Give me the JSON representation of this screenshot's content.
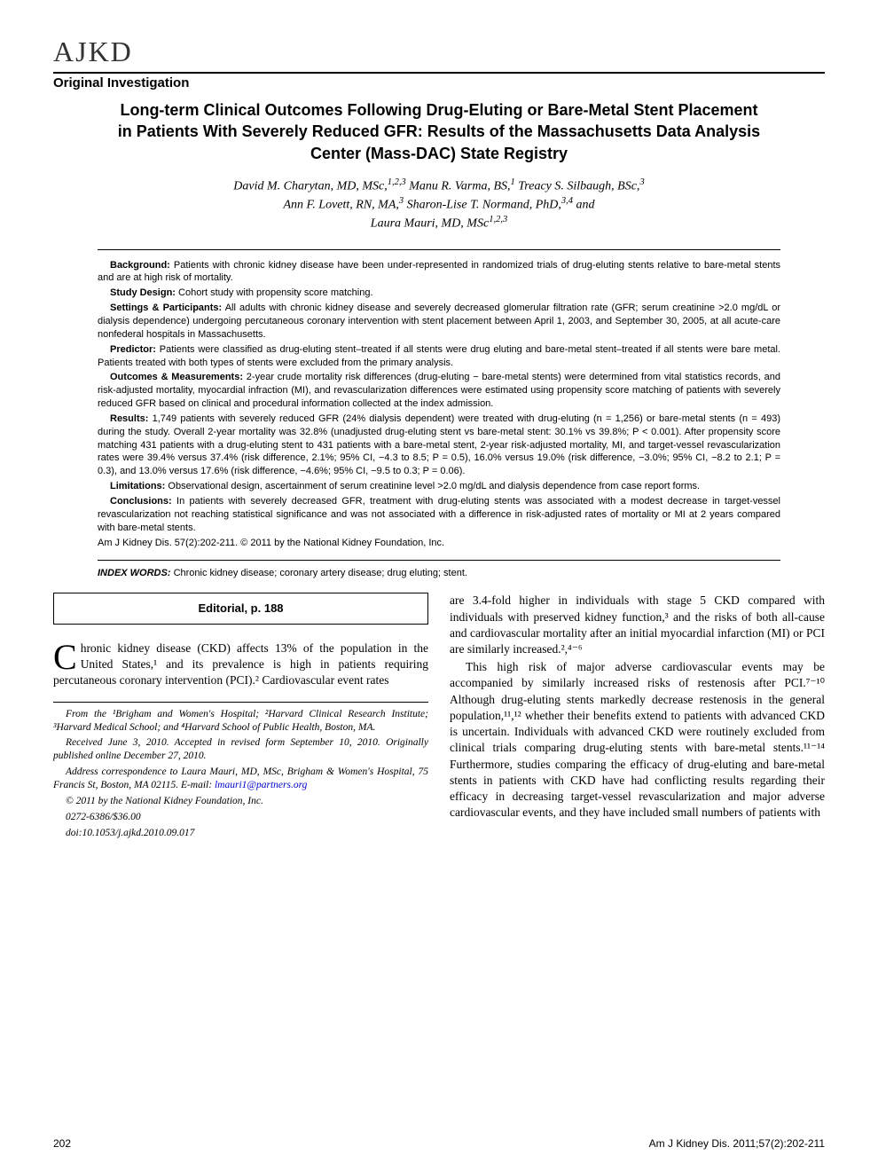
{
  "journal": {
    "logo": "AJKD",
    "section_type": "Original Investigation"
  },
  "article": {
    "title": "Long-term Clinical Outcomes Following Drug-Eluting or Bare-Metal Stent Placement in Patients With Severely Reduced GFR: Results of the Massachusetts Data Analysis Center (Mass-DAC) State Registry",
    "authors_html": "David M. Charytan, MD, MSc,<sup>1,2,3</sup> Manu R. Varma, BS,<sup>1</sup> Treacy S. Silbaugh, BSc,<sup>3</sup> Ann F. Lovett, RN, MA,<sup>3</sup> Sharon-Lise T. Normand, PhD,<sup>3,4</sup> and Laura Mauri, MD, MSc<sup>1,2,3</sup>"
  },
  "abstract": {
    "background": {
      "label": "Background:",
      "text": "Patients with chronic kidney disease have been under-represented in randomized trials of drug-eluting stents relative to bare-metal stents and are at high risk of mortality."
    },
    "study_design": {
      "label": "Study Design:",
      "text": "Cohort study with propensity score matching."
    },
    "setting": {
      "label": "Settings & Participants:",
      "text": "All adults with chronic kidney disease and severely decreased glomerular filtration rate (GFR; serum creatinine >2.0 mg/dL or dialysis dependence) undergoing percutaneous coronary intervention with stent placement between April 1, 2003, and September 30, 2005, at all acute-care nonfederal hospitals in Massachusetts."
    },
    "predictor": {
      "label": "Predictor:",
      "text": "Patients were classified as drug-eluting stent–treated if all stents were drug eluting and bare-metal stent–treated if all stents were bare metal. Patients treated with both types of stents were excluded from the primary analysis."
    },
    "outcomes": {
      "label": "Outcomes & Measurements:",
      "text": "2-year crude mortality risk differences (drug-eluting − bare-metal stents) were determined from vital statistics records, and risk-adjusted mortality, myocardial infraction (MI), and revascularization differences were estimated using propensity score matching of patients with severely reduced GFR based on clinical and procedural information collected at the index admission."
    },
    "results": {
      "label": "Results:",
      "text": "1,749 patients with severely reduced GFR (24% dialysis dependent) were treated with drug-eluting (n = 1,256) or bare-metal stents (n = 493) during the study. Overall 2-year mortality was 32.8% (unadjusted drug-eluting stent vs bare-metal stent: 30.1% vs 39.8%; P < 0.001). After propensity score matching 431 patients with a drug-eluting stent to 431 patients with a bare-metal stent, 2-year risk-adjusted mortality, MI, and target-vessel revascularization rates were 39.4% versus 37.4% (risk difference, 2.1%; 95% CI, −4.3 to 8.5; P = 0.5), 16.0% versus 19.0% (risk difference, −3.0%; 95% CI, −8.2 to 2.1; P = 0.3), and 13.0% versus 17.6% (risk difference, −4.6%; 95% CI, −9.5 to 0.3; P = 0.06)."
    },
    "limitations": {
      "label": "Limitations:",
      "text": "Observational design, ascertainment of serum creatinine level >2.0 mg/dL and dialysis dependence from case report forms."
    },
    "conclusions": {
      "label": "Conclusions:",
      "text": "In patients with severely decreased GFR, treatment with drug-eluting stents was associated with a modest decrease in target-vessel revascularization not reaching statistical significance and was not associated with a difference in risk-adjusted rates of mortality or MI at 2 years compared with bare-metal stents."
    },
    "citation": "Am J Kidney Dis. 57(2):202-211. © 2011 by the National Kidney Foundation, Inc.",
    "index_label": "INDEX WORDS:",
    "index_words": "Chronic kidney disease; coronary artery disease; drug eluting; stent."
  },
  "editorial_box": "Editorial, p. 188",
  "body": {
    "p1_dropcap": "C",
    "p1": "hronic kidney disease (CKD) affects 13% of the population in the United States,¹ and its prevalence is high in patients requiring percutaneous coronary intervention (PCI).² Cardiovascular event rates",
    "p2": "are 3.4-fold higher in individuals with stage 5 CKD compared with individuals with preserved kidney function,³ and the risks of both all-cause and cardiovascular mortality after an initial myocardial infarction (MI) or PCI are similarly increased.²,⁴⁻⁶",
    "p3": "This high risk of major adverse cardiovascular events may be accompanied by similarly increased risks of restenosis after PCI.⁷⁻¹⁰ Although drug-eluting stents markedly decrease restenosis in the general population,¹¹,¹² whether their benefits extend to patients with advanced CKD is uncertain. Individuals with advanced CKD were routinely excluded from clinical trials comparing drug-eluting stents with bare-metal stents.¹¹⁻¹⁴ Furthermore, studies comparing the efficacy of drug-eluting and bare-metal stents in patients with CKD have had conflicting results regarding their efficacy in decreasing target-vessel revascularization and major adverse cardiovascular events, and they have included small numbers of patients with"
  },
  "affiliations": {
    "from": "From the ¹Brigham and Women's Hospital; ²Harvard Clinical Research Institute; ³Harvard Medical School; and ⁴Harvard School of Public Health, Boston, MA.",
    "received": "Received June 3, 2010. Accepted in revised form September 10, 2010. Originally published online December 27, 2010.",
    "correspondence": "Address correspondence to Laura Mauri, MD, MSc, Brigham & Women's Hospital, 75 Francis St, Boston, MA 02115. E-mail:",
    "email": "lmauri1@partners.org",
    "copyright": "© 2011 by the National Kidney Foundation, Inc.",
    "issn": "0272-6386/$36.00",
    "doi": "doi:10.1053/j.ajkd.2010.09.017"
  },
  "footer": {
    "page": "202",
    "citation": "Am J Kidney Dis. 2011;57(2):202-211"
  },
  "colors": {
    "text": "#000000",
    "background": "#ffffff",
    "link": "#0000cc",
    "rule": "#000000"
  }
}
